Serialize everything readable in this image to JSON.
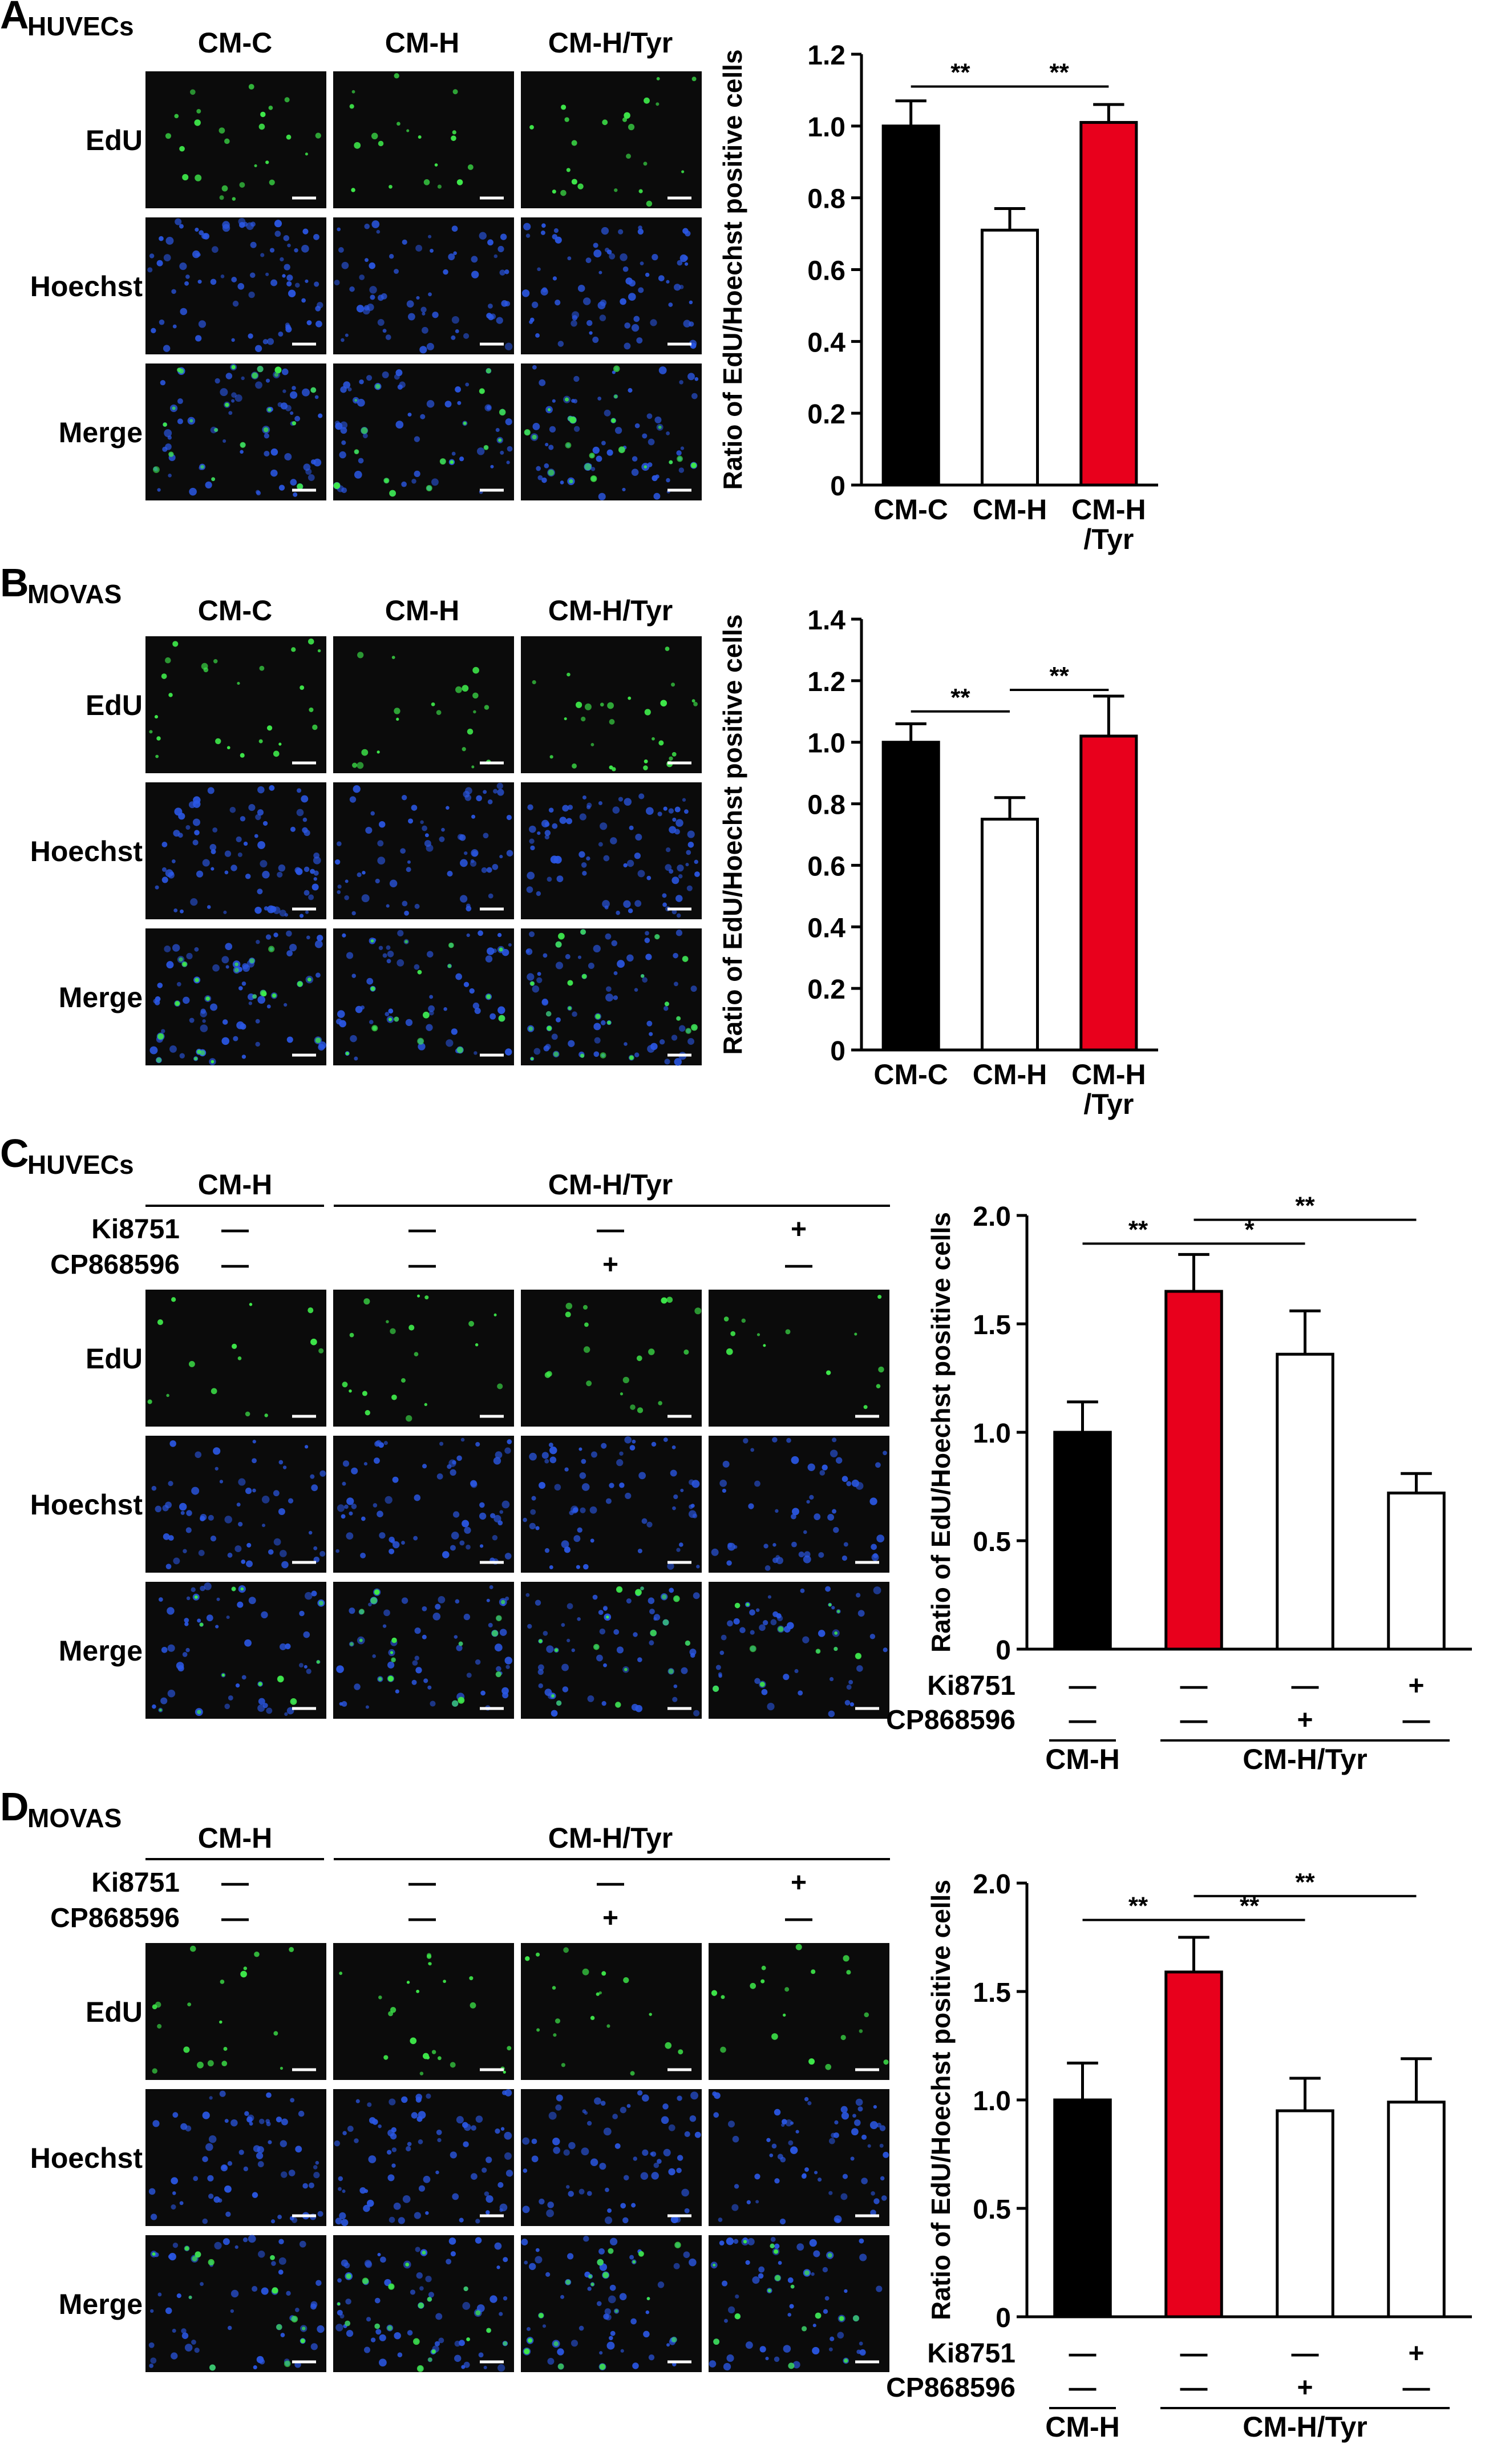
{
  "panels": [
    {
      "letter": "A",
      "cell_line": "HUVECs",
      "image_columns": [
        "CM-C",
        "CM-H",
        "CM-H/Tyr"
      ],
      "image_rows": [
        "EdU",
        "Hoechst",
        "Merge"
      ],
      "image_seed_bias": [
        0.85,
        0.55,
        0.75
      ]
    },
    {
      "letter": "B",
      "cell_line": "MOVAS",
      "image_columns": [
        "CM-C",
        "CM-H",
        "CM-H/Tyr"
      ],
      "image_rows": [
        "EdU",
        "Hoechst",
        "Merge"
      ],
      "image_seed_bias": [
        0.9,
        0.6,
        0.95
      ]
    },
    {
      "letter": "C",
      "cell_line": "HUVECs",
      "group_labels": [
        "CM-H",
        "CM-H/Tyr"
      ],
      "treatment_rows": [
        {
          "name": "Ki8751",
          "signs": [
            "—",
            "—",
            "—",
            "+"
          ]
        },
        {
          "name": "CP868596",
          "signs": [
            "—",
            "—",
            "+",
            "—"
          ]
        }
      ],
      "image_rows": [
        "EdU",
        "Hoechst",
        "Merge"
      ],
      "image_seed_bias": [
        0.35,
        0.6,
        0.55,
        0.3
      ]
    },
    {
      "letter": "D",
      "cell_line": "MOVAS",
      "group_labels": [
        "CM-H",
        "CM-H/Tyr"
      ],
      "treatment_rows": [
        {
          "name": "Ki8751",
          "signs": [
            "—",
            "—",
            "—",
            "+"
          ]
        },
        {
          "name": "CP868596",
          "signs": [
            "—",
            "—",
            "+",
            "—"
          ]
        }
      ],
      "image_rows": [
        "EdU",
        "Hoechst",
        "Merge"
      ],
      "image_seed_bias": [
        0.55,
        0.8,
        0.55,
        0.55
      ]
    }
  ],
  "colors": {
    "black": "#000000",
    "red": "#e8001c",
    "white": "#ffffff",
    "micro_bg": "#0b0b0b",
    "edu_green": "#3ee84a",
    "hoechst_blue": "#2b58e6"
  },
  "chart_data": [
    {
      "panel": "A",
      "type": "bar",
      "ylabel": "Ratio of EdU/Hoechst positive cells",
      "categories": [
        "CM-C",
        "CM-H",
        "CM-H\n/Tyr"
      ],
      "values": [
        1.0,
        0.71,
        1.01
      ],
      "errors": [
        0.07,
        0.06,
        0.05
      ],
      "bar_colors": [
        "black",
        "white",
        "red"
      ],
      "ylim": [
        0,
        1.2
      ],
      "yticks": [
        "0",
        "0.2",
        "0.4",
        "0.6",
        "0.8",
        "1.0",
        "1.2"
      ],
      "ytick_values": [
        0,
        0.2,
        0.4,
        0.6,
        0.8,
        1.0,
        1.2
      ],
      "significance": [
        {
          "from": 0,
          "to": 1,
          "label": "**",
          "y": 1.11
        },
        {
          "from": 1,
          "to": 2,
          "label": "**",
          "y": 1.11
        }
      ]
    },
    {
      "panel": "B",
      "type": "bar",
      "ylabel": "Ratio of EdU/Hoechst positive cells",
      "categories": [
        "CM-C",
        "CM-H",
        "CM-H\n/Tyr"
      ],
      "values": [
        1.0,
        0.75,
        1.02
      ],
      "errors": [
        0.06,
        0.07,
        0.13
      ],
      "bar_colors": [
        "black",
        "white",
        "red"
      ],
      "ylim": [
        0,
        1.4
      ],
      "yticks": [
        "0",
        "0.2",
        "0.4",
        "0.6",
        "0.8",
        "1.0",
        "1.2",
        "1.4"
      ],
      "ytick_values": [
        0,
        0.2,
        0.4,
        0.6,
        0.8,
        1.0,
        1.2,
        1.4
      ],
      "significance": [
        {
          "from": 0,
          "to": 1,
          "label": "**",
          "y": 1.1
        },
        {
          "from": 1,
          "to": 2,
          "label": "**",
          "y": 1.17
        }
      ]
    },
    {
      "panel": "C",
      "type": "bar",
      "ylabel": "Ratio of EdU/Hoechst positive cells",
      "categories": [
        "",
        "",
        "",
        ""
      ],
      "values": [
        1.0,
        1.65,
        1.36,
        0.72
      ],
      "errors": [
        0.14,
        0.17,
        0.2,
        0.09
      ],
      "bar_colors": [
        "black",
        "red",
        "white",
        "white"
      ],
      "ylim": [
        0,
        2.0
      ],
      "yticks": [
        "0",
        "0.5",
        "1.0",
        "1.5",
        "2.0"
      ],
      "ytick_values": [
        0,
        0.5,
        1.0,
        1.5,
        2.0
      ],
      "significance": [
        {
          "from": 0,
          "to": 1,
          "label": "**",
          "y": 1.87
        },
        {
          "from": 1,
          "to": 2,
          "label": "*",
          "y": 1.87
        },
        {
          "from": 1,
          "to": 3,
          "label": "**",
          "y": 1.98
        }
      ],
      "treatments": [
        {
          "name": "Ki8751",
          "signs": [
            "—",
            "—",
            "—",
            "+"
          ]
        },
        {
          "name": "CP868596",
          "signs": [
            "—",
            "—",
            "+",
            "—"
          ]
        }
      ],
      "groups": [
        "CM-H",
        "CM-H/Tyr"
      ]
    },
    {
      "panel": "D",
      "type": "bar",
      "ylabel": "Ratio of EdU/Hoechst positive cells",
      "categories": [
        "",
        "",
        "",
        ""
      ],
      "values": [
        1.0,
        1.59,
        0.95,
        0.99
      ],
      "errors": [
        0.17,
        0.16,
        0.15,
        0.2
      ],
      "bar_colors": [
        "black",
        "red",
        "white",
        "white"
      ],
      "ylim": [
        0,
        2.0
      ],
      "yticks": [
        "0",
        "0.5",
        "1.0",
        "1.5",
        "2.0"
      ],
      "ytick_values": [
        0,
        0.5,
        1.0,
        1.5,
        2.0
      ],
      "significance": [
        {
          "from": 0,
          "to": 1,
          "label": "**",
          "y": 1.83
        },
        {
          "from": 1,
          "to": 2,
          "label": "**",
          "y": 1.83
        },
        {
          "from": 1,
          "to": 3,
          "label": "**",
          "y": 1.94
        }
      ],
      "treatments": [
        {
          "name": "Ki8751",
          "signs": [
            "—",
            "—",
            "—",
            "+"
          ]
        },
        {
          "name": "CP868596",
          "signs": [
            "—",
            "—",
            "+",
            "—"
          ]
        }
      ],
      "groups": [
        "CM-H",
        "CM-H/Tyr"
      ]
    }
  ]
}
